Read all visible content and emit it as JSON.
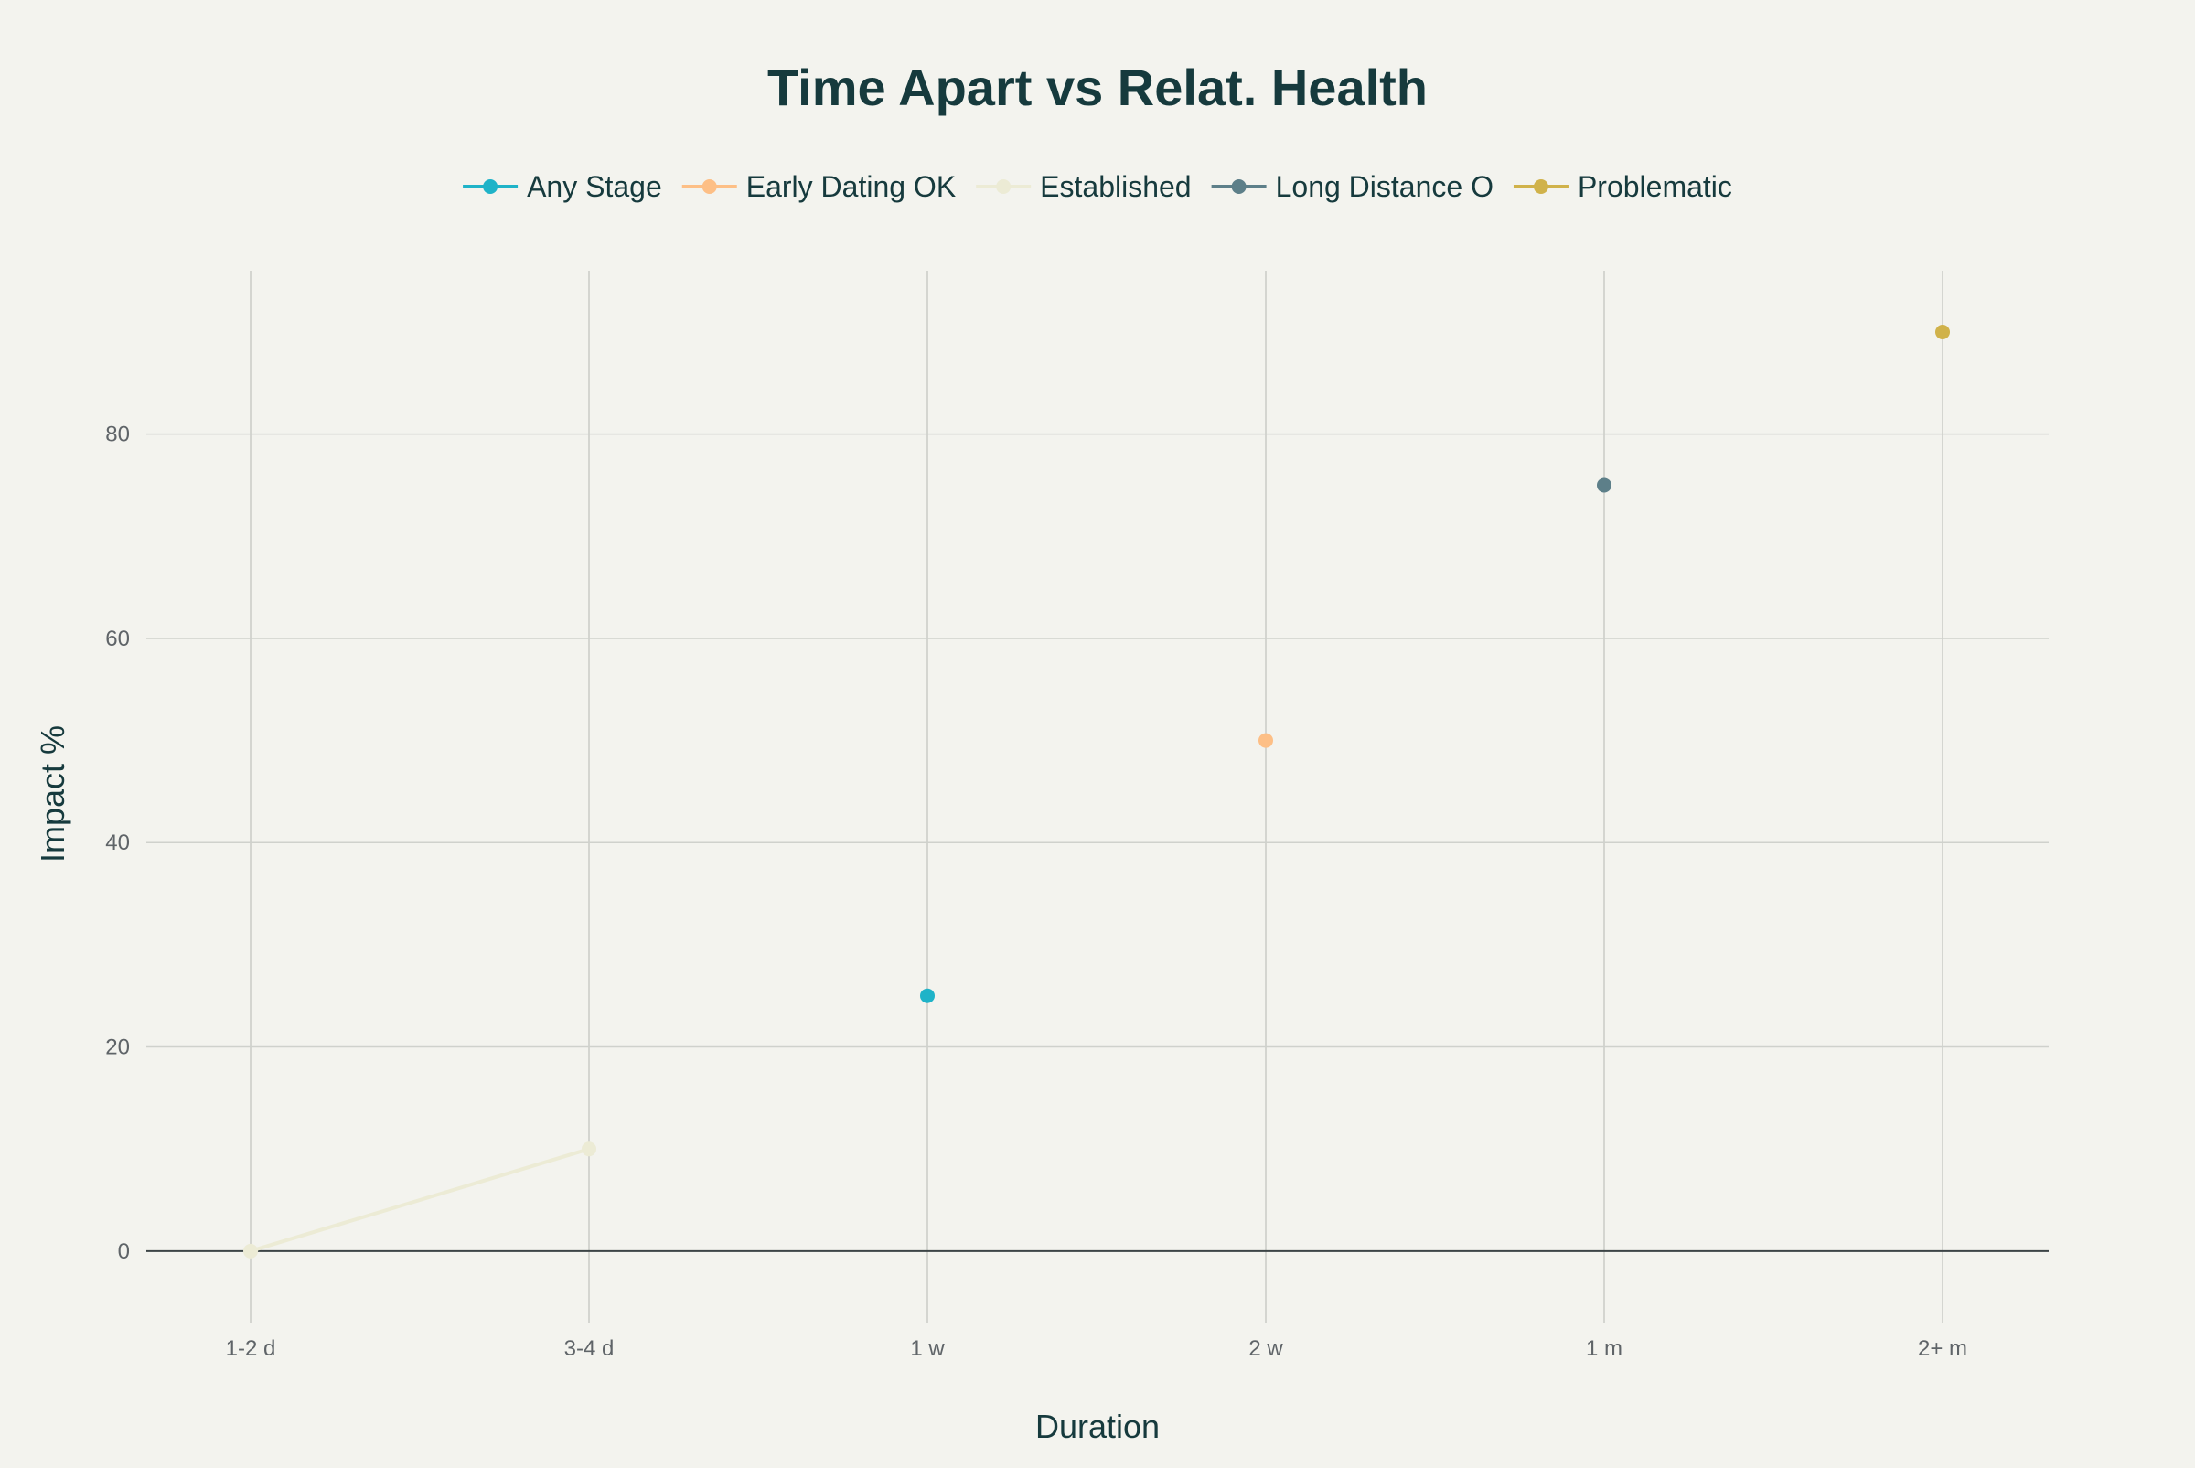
{
  "chart_data": {
    "type": "line",
    "title": "Time Apart vs Relat. Health",
    "xlabel": "Duration",
    "ylabel": "Impact %",
    "categories": [
      "1-2 d",
      "3-4 d",
      "1 w",
      "2 w",
      "1 m",
      "2+ m"
    ],
    "ylim": [
      -7,
      96
    ],
    "yticks": [
      0,
      20,
      40,
      60,
      80
    ],
    "grid": true,
    "legend_position": "top-center",
    "series": [
      {
        "name": "Any Stage",
        "color": "#1fb3c8",
        "points": [
          {
            "x": "1 w",
            "y": 25
          }
        ]
      },
      {
        "name": "Early Dating OK",
        "color": "#fdbf86",
        "points": [
          {
            "x": "2 w",
            "y": 50
          }
        ]
      },
      {
        "name": "Established",
        "color": "#ecebd5",
        "points": [
          {
            "x": "1-2 d",
            "y": 0
          },
          {
            "x": "3-4 d",
            "y": 10
          }
        ]
      },
      {
        "name": "Long Distance O",
        "color": "#5d7f89",
        "points": [
          {
            "x": "1 m",
            "y": 75
          }
        ]
      },
      {
        "name": "Problematic",
        "color": "#d0b24a",
        "points": [
          {
            "x": "2+ m",
            "y": 90
          }
        ]
      }
    ]
  }
}
